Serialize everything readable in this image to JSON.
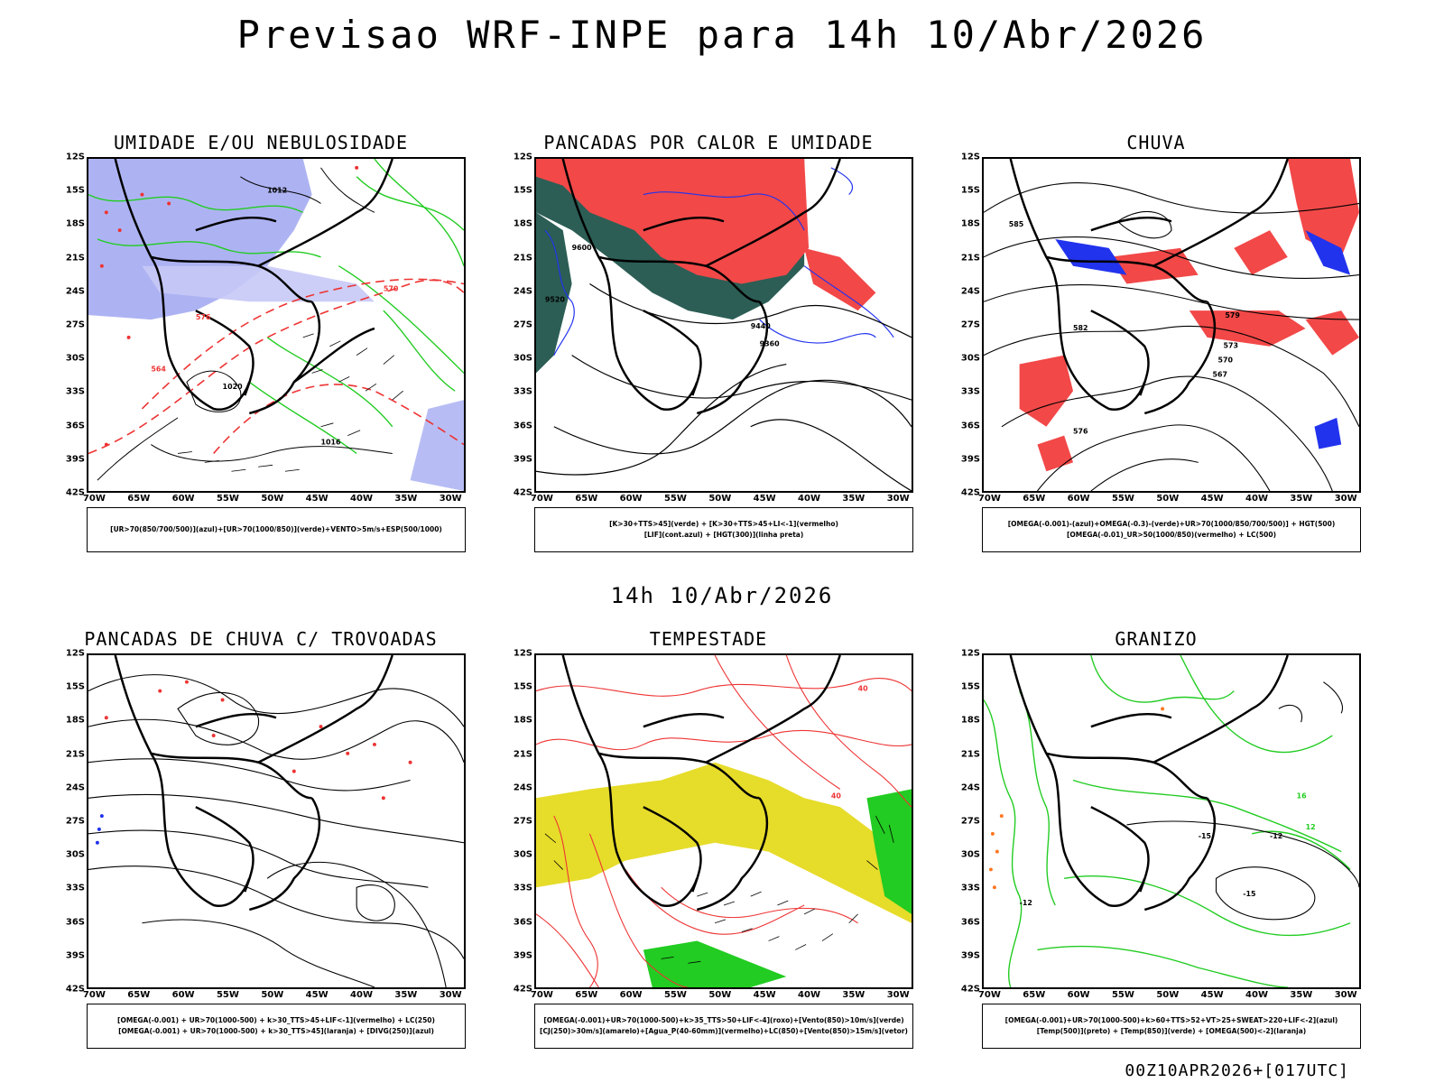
{
  "title": "Previsao WRF-INPE  para 14h 10/Abr/2026",
  "mid_title": "14h 10/Abr/2026",
  "stamp": "00Z10APR2026+[017UTC]",
  "lat_labels": [
    "12S",
    "15S",
    "18S",
    "21S",
    "24S",
    "27S",
    "30S",
    "33S",
    "36S",
    "39S",
    "42S"
  ],
  "lon_labels": [
    "70W",
    "65W",
    "60W",
    "55W",
    "50W",
    "45W",
    "40W",
    "35W",
    "30W"
  ],
  "panels": [
    {
      "id": "umidade",
      "title": "UMIDADE E/OU NEBULOSIDADE",
      "legend": [
        "[UR>70(850/700/500)](azul)+[UR>70(1000/850)](verde)+VENTO>5m/s+ESP(500/1000)"
      ],
      "contour_labels": [
        "1012",
        "1016",
        "1020",
        "570",
        "576",
        "564"
      ]
    },
    {
      "id": "pancadas-calor",
      "title": "PANCADAS POR CALOR E UMIDADE",
      "legend": [
        "[K>30+TTS>45](verde) + [K>30+TTS>45+LI<-1](vermelho)",
        "[LIF](cont.azul) + [HGT(300)](linha preta)"
      ],
      "contour_labels": [
        "9600",
        "9520",
        "9440",
        "9360"
      ]
    },
    {
      "id": "chuva",
      "title": "CHUVA",
      "legend": [
        "[OMEGA(-0.001)-(azul)+OMEGA(-0.3)-(verde)+UR>70(1000/850/700/500)] + HGT(500)",
        "[OMEGA(-0.01)_UR>50(1000/850)(vermelho) + LC(500)"
      ],
      "contour_labels": [
        "585",
        "582",
        "579",
        "576",
        "573",
        "570",
        "567"
      ]
    },
    {
      "id": "pancadas-trovoadas",
      "title": "PANCADAS DE CHUVA C/ TROVOADAS",
      "legend": [
        "[OMEGA(-0.001) + UR>70(1000-500) + k>30_TTS>45+LIF<-1](vermelho) + LC(250)",
        "[OMEGA(-0.001) + UR>70(1000-500) + k>30_TTS>45](laranja) + [DIVG(250)](azul)"
      ],
      "contour_labels": []
    },
    {
      "id": "tempestade",
      "title": "TEMPESTADE",
      "legend": [
        "[OMEGA(-0.001)+UR>70(1000-500)+k>35_TTS>50+LIF<-4](roxo)+[Vento(850)>10m/s](verde)",
        "[CJ(250)>30m/s](amarelo)+[Agua_P(40-60mm)](vermelho)+LC(850)+[Vento(850)>15m/s](vetor)"
      ],
      "contour_labels": [
        "40",
        "40"
      ]
    },
    {
      "id": "granizo",
      "title": "GRANIZO",
      "legend": [
        "[OMEGA(-0.001)+UR>70(1000-500)+k>60+TTS>52+VT>25+SWEAT>220+LIF<-2](azul)",
        "[Temp(500)](preto) + [Temp(850)](verde) + [OMEGA(500)<-2](laranja)"
      ],
      "contour_labels": [
        "-15",
        "-12",
        "-15",
        "-12",
        "16",
        "12"
      ]
    }
  ]
}
